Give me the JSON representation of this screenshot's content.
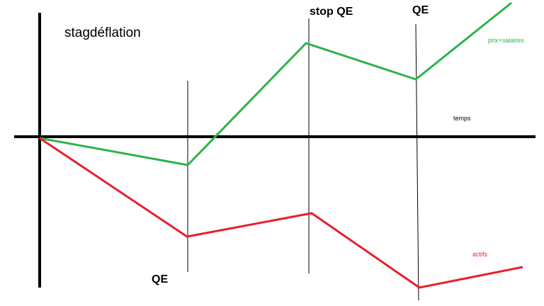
{
  "title": "stagdéflation",
  "annotations": {
    "qe_bottom": "QE",
    "stop_qe": "stop QE",
    "qe_top": "QE"
  },
  "axis": {
    "x_label": "temps"
  },
  "colors": {
    "prices_wages": "#2eb24a",
    "assets": "#e8202a",
    "axes": "#000000",
    "event_lines": "#000000"
  },
  "series": [
    {
      "name": "prix+salaires",
      "color_key": "prices_wages"
    },
    {
      "name": "actifs",
      "color_key": "assets"
    }
  ]
}
